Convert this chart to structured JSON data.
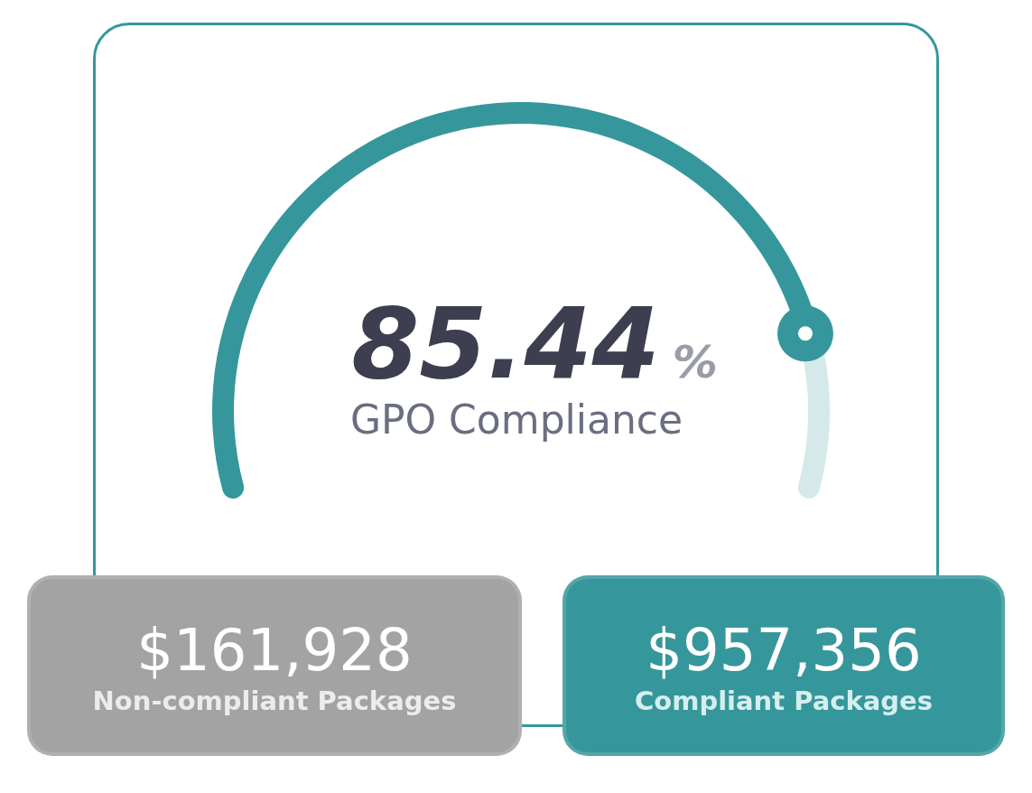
{
  "chart_data": {
    "type": "donut",
    "title": "GPO Compliance",
    "categories": [
      null,
      null
    ],
    "values": [
      85.44,
      14.56
    ],
    "colors": [
      "#35979b",
      "#d5e9ea"
    ],
    "value_labels": [
      "85.44%",
      null
    ],
    "annotations": [
      "$161,928",
      "Non-compliant Packages",
      "$957,356",
      "Compliant Packages"
    ]
  }
}
